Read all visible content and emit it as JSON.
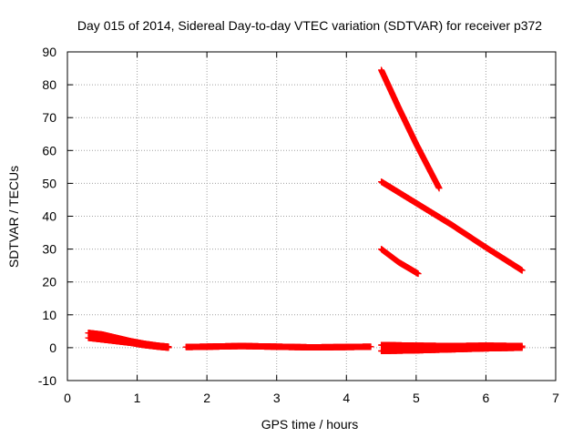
{
  "chart_data": {
    "type": "scatter",
    "title": "Day 015 of 2014, Sidereal Day-to-day VTEC variation (SDTVAR) for receiver p372",
    "xlabel": "GPS time / hours",
    "ylabel": "SDTVAR / TECUs",
    "xlim": [
      0,
      7
    ],
    "ylim": [
      -10,
      90
    ],
    "xticks": [
      0,
      1,
      2,
      3,
      4,
      5,
      6,
      7
    ],
    "yticks": [
      -10,
      0,
      10,
      20,
      30,
      40,
      50,
      60,
      70,
      80,
      90
    ],
    "grid": true,
    "marker": "+",
    "color": "#ff0000",
    "segments": [
      {
        "x": [
          0.3,
          0.5,
          0.7,
          0.9,
          1.1,
          1.3,
          1.45
        ],
        "y": [
          4.5,
          4.0,
          3.0,
          2.0,
          1.2,
          0.6,
          0.3
        ]
      },
      {
        "x": [
          0.3,
          0.5,
          0.7,
          0.9,
          1.1,
          1.3,
          1.45
        ],
        "y": [
          3.0,
          2.5,
          2.0,
          1.5,
          0.8,
          0.3,
          0.0
        ]
      },
      {
        "x": [
          1.7,
          2.0,
          2.5,
          3.0,
          3.5,
          4.0,
          4.35
        ],
        "y": [
          0.2,
          0.3,
          0.5,
          0.3,
          0.1,
          0.2,
          0.3
        ]
      },
      {
        "x": [
          4.5,
          4.75,
          5.0,
          5.33
        ],
        "y": [
          84.5,
          73.0,
          62.0,
          48.5
        ]
      },
      {
        "x": [
          4.5,
          5.0,
          5.5,
          6.0,
          6.52
        ],
        "y": [
          50.5,
          44.0,
          37.5,
          30.5,
          23.5
        ]
      },
      {
        "x": [
          4.5,
          4.75,
          5.03
        ],
        "y": [
          30.0,
          26.0,
          22.5
        ]
      },
      {
        "x": [
          4.5,
          5.0,
          5.5,
          6.0,
          6.52
        ],
        "y": [
          0.8,
          0.6,
          0.5,
          0.6,
          0.5
        ]
      },
      {
        "x": [
          4.5,
          5.0,
          5.5,
          6.0,
          6.52
        ],
        "y": [
          -1.0,
          -0.8,
          -0.5,
          -0.2,
          0.0
        ]
      }
    ]
  }
}
